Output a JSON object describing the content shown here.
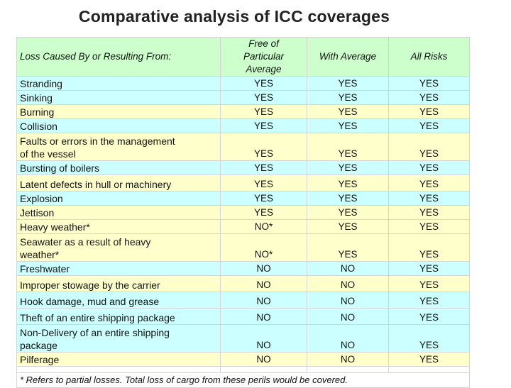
{
  "title": "Comparative analysis of ICC coverages",
  "table": {
    "headers": {
      "loss": "Loss Caused By or Resulting From:",
      "fpa_line1": "Free of",
      "fpa_line2": "Particular",
      "fpa_line3": "Average",
      "wa": "With Average",
      "all_risks": "All Risks"
    },
    "rows": [
      {
        "line1": "Stranding",
        "line2": "",
        "fpa": "YES",
        "wa": "YES",
        "ar": "YES"
      },
      {
        "line1": "Sinking",
        "line2": "",
        "fpa": "YES",
        "wa": "YES",
        "ar": "YES"
      },
      {
        "line1": "Burning",
        "line2": "",
        "fpa": "YES",
        "wa": "YES",
        "ar": "YES"
      },
      {
        "line1": "Collision",
        "line2": "",
        "fpa": "YES",
        "wa": "YES",
        "ar": "YES"
      },
      {
        "line1": "Faults or errors in the management",
        "line2": "of the vessel",
        "fpa": "YES",
        "wa": "YES",
        "ar": "YES"
      },
      {
        "line1": "Bursting of boilers",
        "line2": "",
        "fpa": "YES",
        "wa": "YES",
        "ar": "YES"
      },
      {
        "line1": "Latent defects in hull or machinery",
        "line2": "",
        "fpa": "YES",
        "wa": "YES",
        "ar": "YES"
      },
      {
        "line1": "Explosion",
        "line2": "",
        "fpa": "YES",
        "wa": "YES",
        "ar": "YES"
      },
      {
        "line1": "Jettison",
        "line2": "",
        "fpa": "YES",
        "wa": "YES",
        "ar": "YES"
      },
      {
        "line1": "Heavy weather*",
        "line2": "",
        "fpa": "NO*",
        "wa": "YES",
        "ar": "YES"
      },
      {
        "line1": "Seawater as a result of heavy",
        "line2": "weather*",
        "fpa": "NO*",
        "wa": "YES",
        "ar": "YES"
      },
      {
        "line1": "Freshwater",
        "line2": "",
        "fpa": "NO",
        "wa": "NO",
        "ar": "YES"
      },
      {
        "line1": "Improper stowage by the carrier",
        "line2": "",
        "fpa": "NO",
        "wa": "NO",
        "ar": "YES"
      },
      {
        "line1": "Hook damage, mud and grease",
        "line2": "",
        "fpa": "NO",
        "wa": "NO",
        "ar": "YES"
      },
      {
        "line1": "Theft of an entire shipping package",
        "line2": "",
        "fpa": "NO",
        "wa": "NO",
        "ar": "YES"
      },
      {
        "line1": "Non-Delivery of an entire shipping",
        "line2": "package",
        "fpa": "NO",
        "wa": "NO",
        "ar": "YES"
      },
      {
        "line1": "Pilferage",
        "line2": "",
        "fpa": "NO",
        "wa": "NO",
        "ar": "YES"
      }
    ],
    "footnote": "*  Refers to partial losses.  Total loss of cargo from these perils would be covered."
  }
}
